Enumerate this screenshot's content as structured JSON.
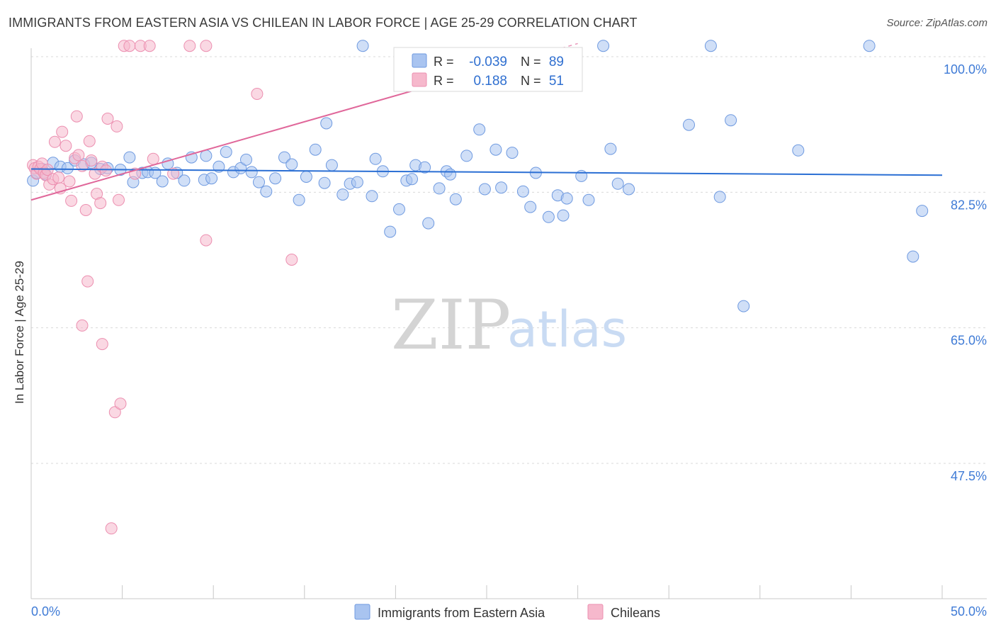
{
  "header": {
    "title": "IMMIGRANTS FROM EASTERN ASIA VS CHILEAN IN LABOR FORCE | AGE 25-29 CORRELATION CHART",
    "source": "Source: ZipAtlas.com"
  },
  "watermark": {
    "zip": "ZIP",
    "atlas": "atlas"
  },
  "legend_box": {
    "rows": [
      {
        "r_label": "R =",
        "r_value": "-0.039",
        "n_label": "N =",
        "n_value": "89"
      },
      {
        "r_label": "R =",
        "r_value": "0.188",
        "n_label": "N =",
        "n_value": "51"
      }
    ]
  },
  "colors": {
    "blue_fill": "#a9c4f0",
    "blue_stroke": "#6f9ae0",
    "blue_line": "#2b6fd4",
    "pink_fill": "#f6b8cc",
    "pink_stroke": "#ec8fb0",
    "pink_line": "#e0679a",
    "axis_text": "#3f7bd6",
    "value_text": "#2f6fd0"
  },
  "chart_data": {
    "type": "scatter",
    "title": "IMMIGRANTS FROM EASTERN ASIA VS CHILEAN IN LABOR FORCE | AGE 25-29 CORRELATION CHART",
    "xlabel": "",
    "ylabel": "In Labor Force | Age 25-29",
    "xlim": [
      0,
      50
    ],
    "ylim": [
      32,
      102
    ],
    "x_tick_labels": [
      "0.0%",
      "50.0%"
    ],
    "y_ticks": [
      {
        "value": 100.0,
        "label": "100.0%"
      },
      {
        "value": 82.5,
        "label": "82.5%"
      },
      {
        "value": 65.0,
        "label": "65.0%"
      },
      {
        "value": 47.5,
        "label": "47.5%"
      }
    ],
    "grid": true,
    "legend_position": "bottom",
    "series": [
      {
        "name": "Immigrants from Eastern Asia",
        "color": "#a9c4f0",
        "trend": {
          "x": [
            0,
            50
          ],
          "y": [
            85.5,
            84.7
          ],
          "style": "solid"
        },
        "points": [
          [
            0.1,
            84.0
          ],
          [
            0.3,
            85.0
          ],
          [
            0.6,
            85.5
          ],
          [
            0.8,
            84.8
          ],
          [
            1.2,
            86.3
          ],
          [
            1.6,
            85.8
          ],
          [
            2.0,
            85.6
          ],
          [
            2.4,
            86.6
          ],
          [
            2.9,
            86.1
          ],
          [
            3.3,
            86.3
          ],
          [
            3.8,
            85.5
          ],
          [
            4.2,
            85.6
          ],
          [
            4.9,
            85.4
          ],
          [
            5.4,
            87.0
          ],
          [
            5.6,
            83.8
          ],
          [
            6.1,
            85.0
          ],
          [
            6.4,
            85.1
          ],
          [
            6.8,
            85.0
          ],
          [
            7.2,
            83.9
          ],
          [
            7.5,
            86.2
          ],
          [
            8.0,
            85.0
          ],
          [
            8.4,
            84.0
          ],
          [
            8.8,
            87.0
          ],
          [
            9.5,
            84.1
          ],
          [
            9.6,
            87.2
          ],
          [
            9.9,
            84.3
          ],
          [
            10.3,
            85.8
          ],
          [
            10.7,
            87.7
          ],
          [
            11.1,
            85.1
          ],
          [
            11.5,
            85.6
          ],
          [
            11.8,
            86.7
          ],
          [
            12.1,
            85.1
          ],
          [
            12.5,
            83.8
          ],
          [
            12.9,
            82.6
          ],
          [
            13.4,
            84.3
          ],
          [
            13.9,
            87.0
          ],
          [
            14.3,
            86.1
          ],
          [
            14.7,
            81.5
          ],
          [
            15.1,
            84.5
          ],
          [
            15.6,
            88.0
          ],
          [
            16.1,
            83.7
          ],
          [
            16.2,
            91.4
          ],
          [
            16.5,
            86.0
          ],
          [
            17.1,
            82.2
          ],
          [
            17.5,
            83.6
          ],
          [
            17.9,
            83.8
          ],
          [
            18.7,
            82.0
          ],
          [
            18.9,
            86.8
          ],
          [
            19.3,
            85.2
          ],
          [
            19.7,
            77.4
          ],
          [
            20.2,
            80.3
          ],
          [
            20.6,
            84.0
          ],
          [
            20.9,
            84.2
          ],
          [
            21.1,
            86.0
          ],
          [
            21.6,
            85.7
          ],
          [
            21.8,
            78.5
          ],
          [
            22.4,
            83.0
          ],
          [
            22.8,
            85.2
          ],
          [
            23.0,
            84.8
          ],
          [
            23.3,
            81.6
          ],
          [
            23.9,
            87.2
          ],
          [
            24.6,
            90.6
          ],
          [
            24.9,
            82.9
          ],
          [
            25.5,
            88.0
          ],
          [
            25.8,
            83.1
          ],
          [
            26.4,
            87.6
          ],
          [
            27.0,
            82.6
          ],
          [
            27.4,
            80.6
          ],
          [
            27.7,
            85.0
          ],
          [
            28.4,
            79.3
          ],
          [
            28.9,
            82.1
          ],
          [
            29.2,
            79.5
          ],
          [
            29.4,
            81.7
          ],
          [
            30.2,
            84.6
          ],
          [
            30.6,
            81.5
          ],
          [
            31.8,
            88.1
          ],
          [
            32.2,
            83.6
          ],
          [
            32.8,
            82.9
          ],
          [
            36.1,
            91.2
          ],
          [
            37.8,
            81.9
          ],
          [
            38.4,
            91.8
          ],
          [
            39.1,
            67.8
          ],
          [
            42.1,
            87.9
          ],
          [
            48.9,
            80.1
          ],
          [
            48.4,
            74.2
          ],
          [
            18.2,
            101.4
          ],
          [
            31.4,
            101.4
          ],
          [
            37.3,
            101.4
          ],
          [
            46.0,
            101.4
          ]
        ]
      },
      {
        "name": "Chileans",
        "color": "#f6b8cc",
        "trend": {
          "x": [
            0,
            30
          ],
          "y": [
            81.5,
            101.7
          ],
          "style": "solid-then-dashed",
          "solid_until": 25
        },
        "points": [
          [
            0.1,
            86.0
          ],
          [
            0.2,
            85.6
          ],
          [
            0.3,
            84.9
          ],
          [
            0.4,
            85.8
          ],
          [
            0.5,
            85.5
          ],
          [
            0.6,
            86.2
          ],
          [
            0.7,
            85.0
          ],
          [
            0.8,
            84.7
          ],
          [
            0.9,
            85.4
          ],
          [
            1.0,
            83.5
          ],
          [
            1.2,
            84.2
          ],
          [
            1.3,
            89.0
          ],
          [
            1.5,
            84.4
          ],
          [
            1.6,
            83.0
          ],
          [
            1.7,
            90.3
          ],
          [
            1.9,
            88.5
          ],
          [
            2.1,
            83.9
          ],
          [
            2.2,
            81.4
          ],
          [
            2.4,
            86.9
          ],
          [
            2.5,
            92.3
          ],
          [
            2.6,
            87.3
          ],
          [
            2.8,
            85.9
          ],
          [
            3.0,
            80.2
          ],
          [
            3.1,
            71.0
          ],
          [
            3.2,
            89.1
          ],
          [
            3.3,
            86.6
          ],
          [
            3.5,
            84.9
          ],
          [
            3.6,
            82.3
          ],
          [
            3.8,
            81.1
          ],
          [
            3.9,
            85.8
          ],
          [
            4.1,
            85.3
          ],
          [
            4.2,
            92.0
          ],
          [
            4.4,
            39.1
          ],
          [
            4.6,
            54.1
          ],
          [
            4.7,
            91.0
          ],
          [
            4.8,
            81.5
          ],
          [
            4.9,
            55.2
          ],
          [
            3.9,
            62.9
          ],
          [
            2.8,
            65.3
          ],
          [
            5.7,
            84.9
          ],
          [
            6.7,
            86.8
          ],
          [
            7.8,
            84.9
          ],
          [
            9.6,
            76.3
          ],
          [
            12.4,
            95.2
          ],
          [
            14.3,
            73.8
          ],
          [
            5.1,
            101.4
          ],
          [
            5.4,
            101.4
          ],
          [
            6.0,
            101.4
          ],
          [
            6.5,
            101.4
          ],
          [
            8.7,
            101.4
          ],
          [
            9.6,
            101.4
          ]
        ]
      }
    ]
  }
}
